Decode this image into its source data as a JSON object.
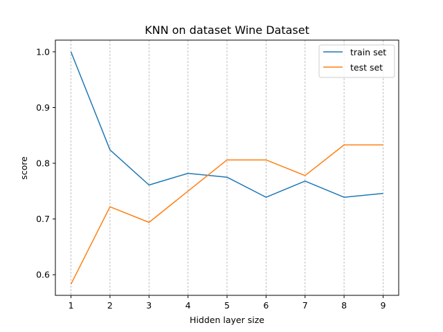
{
  "chart_data": {
    "type": "line",
    "title": "KNN on dataset Wine Dataset",
    "xlabel": "Hidden layer size",
    "ylabel": "score",
    "x": [
      1,
      2,
      3,
      4,
      5,
      6,
      7,
      8,
      9
    ],
    "xlim": [
      0.6,
      9.4
    ],
    "ylim": [
      0.563,
      1.021
    ],
    "xticks": [
      "1",
      "2",
      "3",
      "4",
      "5",
      "6",
      "7",
      "8",
      "9"
    ],
    "yticks": [
      "0.6",
      "0.7",
      "0.8",
      "0.9",
      "1.0"
    ],
    "grid": "vertical dashed",
    "legend_position": "top-right",
    "series": [
      {
        "name": "train set",
        "color": "#1f77b4",
        "values": [
          1.0,
          0.824,
          0.761,
          0.782,
          0.775,
          0.739,
          0.768,
          0.739,
          0.746
        ]
      },
      {
        "name": "test set",
        "color": "#ff7f0e",
        "values": [
          0.583,
          0.722,
          0.694,
          0.75,
          0.806,
          0.806,
          0.778,
          0.833,
          0.833
        ]
      }
    ]
  }
}
